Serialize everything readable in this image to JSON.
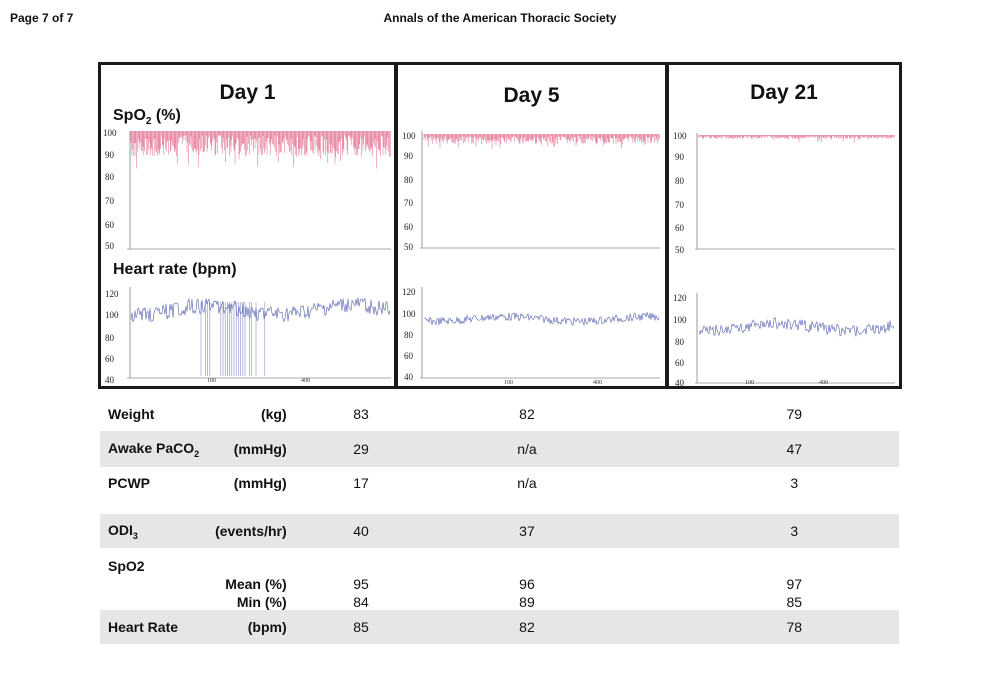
{
  "header": {
    "page": "Page 7 of 7",
    "journal": "Annals of the American Thoracic Society"
  },
  "panels": [
    {
      "day": "Day 1",
      "spo2_label": "SpO",
      "spo2_sub": "2",
      "spo2_unit": " (%)",
      "hr_label": "Heart rate (bpm)",
      "spo2_ticks": [
        "100",
        "90",
        "80",
        "70",
        "60",
        "50"
      ],
      "hr_ticks": [
        "120",
        "100",
        "80",
        "60",
        "40"
      ],
      "x_ticks": [
        "100",
        "400"
      ]
    },
    {
      "day": "Day 5",
      "spo2_ticks": [
        "100",
        "90",
        "80",
        "70",
        "60",
        "50"
      ],
      "hr_ticks": [
        "120",
        "100",
        "80",
        "60",
        "40"
      ],
      "x_ticks": [
        "100",
        "400"
      ]
    },
    {
      "day": "Day 21",
      "spo2_ticks": [
        "100",
        "90",
        "80",
        "70",
        "60",
        "50"
      ],
      "hr_ticks": [
        "120",
        "100",
        "80",
        "60",
        "40"
      ],
      "x_ticks": [
        "100",
        "400"
      ]
    }
  ],
  "colors": {
    "spo2": "#d9456f",
    "hr": "#6b74b8",
    "shade": "#e6e6e6"
  },
  "table": {
    "rows": [
      {
        "label": "Weight",
        "unit": "(kg)",
        "values": [
          "83",
          "82",
          "79"
        ]
      },
      {
        "label": "Awake PaCO",
        "sub": "2",
        "unit": "(mmHg)",
        "values": [
          "29",
          "n/a",
          "47"
        ]
      },
      {
        "label": "PCWP",
        "unit": "(mmHg)",
        "values": [
          "17",
          "n/a",
          "3"
        ]
      },
      {
        "label": "ODI",
        "sub": "3",
        "unit": "(events/hr)",
        "values": [
          "40",
          "37",
          "3"
        ]
      },
      {
        "label": "SpO2"
      },
      {
        "unit": "Mean (%)",
        "values": [
          "95",
          "96",
          "97"
        ]
      },
      {
        "unit": "Min (%)",
        "values": [
          "84",
          "89",
          "85"
        ]
      },
      {
        "label": "Heart Rate",
        "unit": "(bpm)",
        "values": [
          "85",
          "82",
          "78"
        ]
      }
    ]
  }
}
